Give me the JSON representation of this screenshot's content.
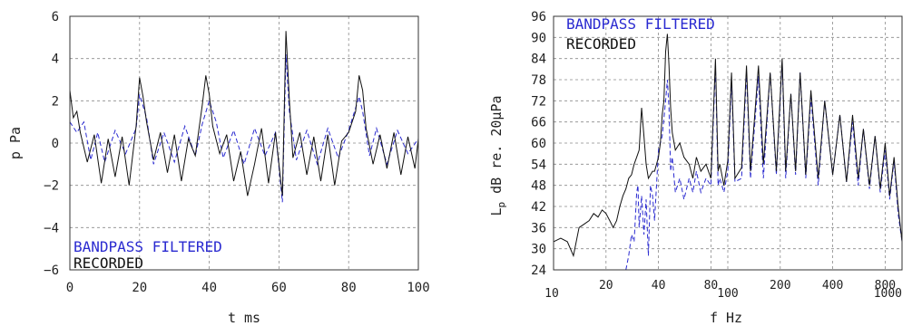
{
  "chart_data": [
    {
      "type": "line",
      "xlabel": "t ms",
      "ylabel": "p Pa",
      "xlim": [
        0,
        100
      ],
      "ylim": [
        -6,
        6
      ],
      "xticks": [
        "0",
        "20",
        "40",
        "60",
        "80",
        "100"
      ],
      "yticks": [
        "6",
        "4",
        "2",
        "0",
        "−2",
        "−4",
        "−6"
      ],
      "grid": true,
      "legend_position": "bottom-left",
      "series": [
        {
          "name": "BANDPASS FILTERED",
          "color": "#2a2ad0",
          "style": "dashed",
          "x": [
            0,
            2,
            4,
            6,
            8,
            10,
            13,
            16,
            19,
            20,
            22,
            24,
            27,
            30,
            33,
            36,
            38,
            40,
            42,
            44,
            47,
            50,
            53,
            56,
            59,
            61,
            62,
            63,
            65,
            68,
            71,
            74,
            77,
            80,
            83,
            84,
            86,
            88,
            91,
            94,
            97,
            100
          ],
          "y": [
            1.0,
            0.5,
            1.0,
            -0.8,
            0.5,
            -0.9,
            0.6,
            -0.5,
            0.7,
            2.3,
            1.2,
            -1.0,
            0.5,
            -0.9,
            0.8,
            -0.6,
            0.9,
            2.0,
            1.0,
            -0.7,
            0.6,
            -1.0,
            0.7,
            -0.6,
            0.5,
            -2.8,
            4.2,
            1.5,
            -0.8,
            0.6,
            -1.0,
            0.7,
            -0.7,
            0.6,
            2.2,
            1.5,
            -0.6,
            0.7,
            -1.0,
            0.6,
            -0.5,
            0.2
          ]
        },
        {
          "name": "RECORDED",
          "color": "#111111",
          "style": "solid",
          "x": [
            0,
            1,
            2,
            3,
            5,
            7,
            9,
            11,
            13,
            15,
            17,
            19,
            20,
            21,
            22,
            24,
            26,
            28,
            30,
            32,
            34,
            36,
            38,
            39,
            40,
            41,
            43,
            45,
            47,
            49,
            51,
            53,
            55,
            57,
            59,
            61,
            62,
            63,
            64,
            66,
            68,
            70,
            72,
            74,
            76,
            78,
            80,
            82,
            83,
            84,
            85,
            87,
            89,
            91,
            93,
            95,
            97,
            99,
            100
          ],
          "y": [
            2.5,
            1.2,
            1.5,
            0.5,
            -0.9,
            0.4,
            -1.9,
            0.2,
            -1.6,
            0.3,
            -2.0,
            0.8,
            3.1,
            2.2,
            1.0,
            -0.8,
            0.5,
            -1.4,
            0.4,
            -1.8,
            0.2,
            -0.6,
            1.8,
            3.2,
            2.3,
            0.8,
            -0.5,
            0.4,
            -1.8,
            -0.4,
            -2.5,
            -1.0,
            0.7,
            -1.9,
            0.5,
            -2.5,
            5.3,
            2.0,
            -0.7,
            0.5,
            -1.5,
            0.3,
            -1.8,
            0.4,
            -2.0,
            0.1,
            0.5,
            1.5,
            3.2,
            2.5,
            0.7,
            -1.0,
            0.4,
            -1.2,
            0.5,
            -1.5,
            0.3,
            -1.2,
            0.2
          ]
        }
      ]
    },
    {
      "type": "line",
      "xlabel": "f Hz",
      "ylabel": "L_p dB re. 20μPa",
      "xscale": "log",
      "xlim": [
        10,
        1000
      ],
      "ylim": [
        24,
        96
      ],
      "xticks": [
        "10",
        "20",
        "40",
        "80",
        "100",
        "200",
        "400",
        "800",
        "1000"
      ],
      "yticks": [
        "96",
        "90",
        "84",
        "78",
        "72",
        "66",
        "60",
        "54",
        "48",
        "42",
        "36",
        "30",
        "24"
      ],
      "grid": true,
      "legend_position": "top-left",
      "series": [
        {
          "name": "BANDPASS FILTERED",
          "color": "#2a2ad0",
          "style": "dashed",
          "x": [
            26,
            27,
            28,
            29,
            30,
            30.5,
            31,
            32,
            33,
            34,
            35,
            36,
            37,
            38,
            40,
            42,
            44,
            45,
            46,
            47,
            48,
            50,
            53,
            56,
            60,
            63,
            66,
            70,
            75,
            80,
            85,
            88,
            90,
            95,
            100,
            105,
            110,
            120,
            128,
            135,
            150,
            160,
            175,
            190,
            205,
            215,
            230,
            245,
            260,
            280,
            300,
            330,
            360,
            400,
            440,
            480,
            520,
            560,
            600,
            650,
            700,
            750,
            800,
            850,
            900,
            950,
            1000
          ],
          "y": [
            24,
            28,
            34,
            32,
            46,
            48,
            36,
            45,
            34,
            44,
            28,
            48,
            45,
            38,
            58,
            62,
            72,
            78,
            70,
            52,
            56,
            46,
            50,
            44,
            50,
            46,
            52,
            46,
            50,
            48,
            82,
            48,
            50,
            46,
            52,
            78,
            49,
            50,
            80,
            50,
            79,
            50,
            80,
            51,
            83,
            50,
            74,
            51,
            80,
            50,
            73,
            48,
            72,
            51,
            68,
            49,
            66,
            48,
            64,
            47,
            62,
            46,
            58,
            44,
            55,
            40,
            32
          ]
        },
        {
          "name": "RECORDED",
          "color": "#111111",
          "style": "solid",
          "x": [
            10,
            11,
            12,
            13,
            14,
            15,
            16,
            17,
            18,
            19,
            20,
            21,
            22,
            23,
            24,
            25,
            26,
            27,
            28,
            29,
            30,
            31,
            32,
            33,
            34,
            35,
            36,
            37,
            38,
            39,
            40,
            41,
            42,
            43,
            44,
            45,
            46,
            47,
            48,
            50,
            53,
            56,
            60,
            63,
            66,
            70,
            75,
            80,
            85,
            88,
            90,
            95,
            100,
            105,
            110,
            120,
            128,
            135,
            150,
            160,
            175,
            190,
            205,
            215,
            230,
            245,
            260,
            280,
            300,
            330,
            360,
            400,
            440,
            480,
            520,
            560,
            600,
            650,
            700,
            750,
            800,
            850,
            900,
            950,
            1000
          ],
          "y": [
            32,
            33,
            32,
            28,
            36,
            37,
            38,
            40,
            39,
            41,
            40,
            38,
            36,
            38,
            42,
            45,
            47,
            50,
            51,
            54,
            56,
            58,
            70,
            62,
            54,
            50,
            51,
            52,
            52,
            54,
            56,
            60,
            68,
            72,
            86,
            91,
            82,
            70,
            63,
            58,
            60,
            56,
            54,
            50,
            56,
            52,
            54,
            50,
            84,
            52,
            54,
            48,
            55,
            80,
            50,
            53,
            82,
            52,
            82,
            54,
            80,
            52,
            84,
            52,
            74,
            52,
            80,
            51,
            75,
            50,
            72,
            51,
            68,
            49,
            68,
            50,
            64,
            48,
            62,
            47,
            60,
            45,
            56,
            42,
            32
          ]
        }
      ]
    }
  ]
}
